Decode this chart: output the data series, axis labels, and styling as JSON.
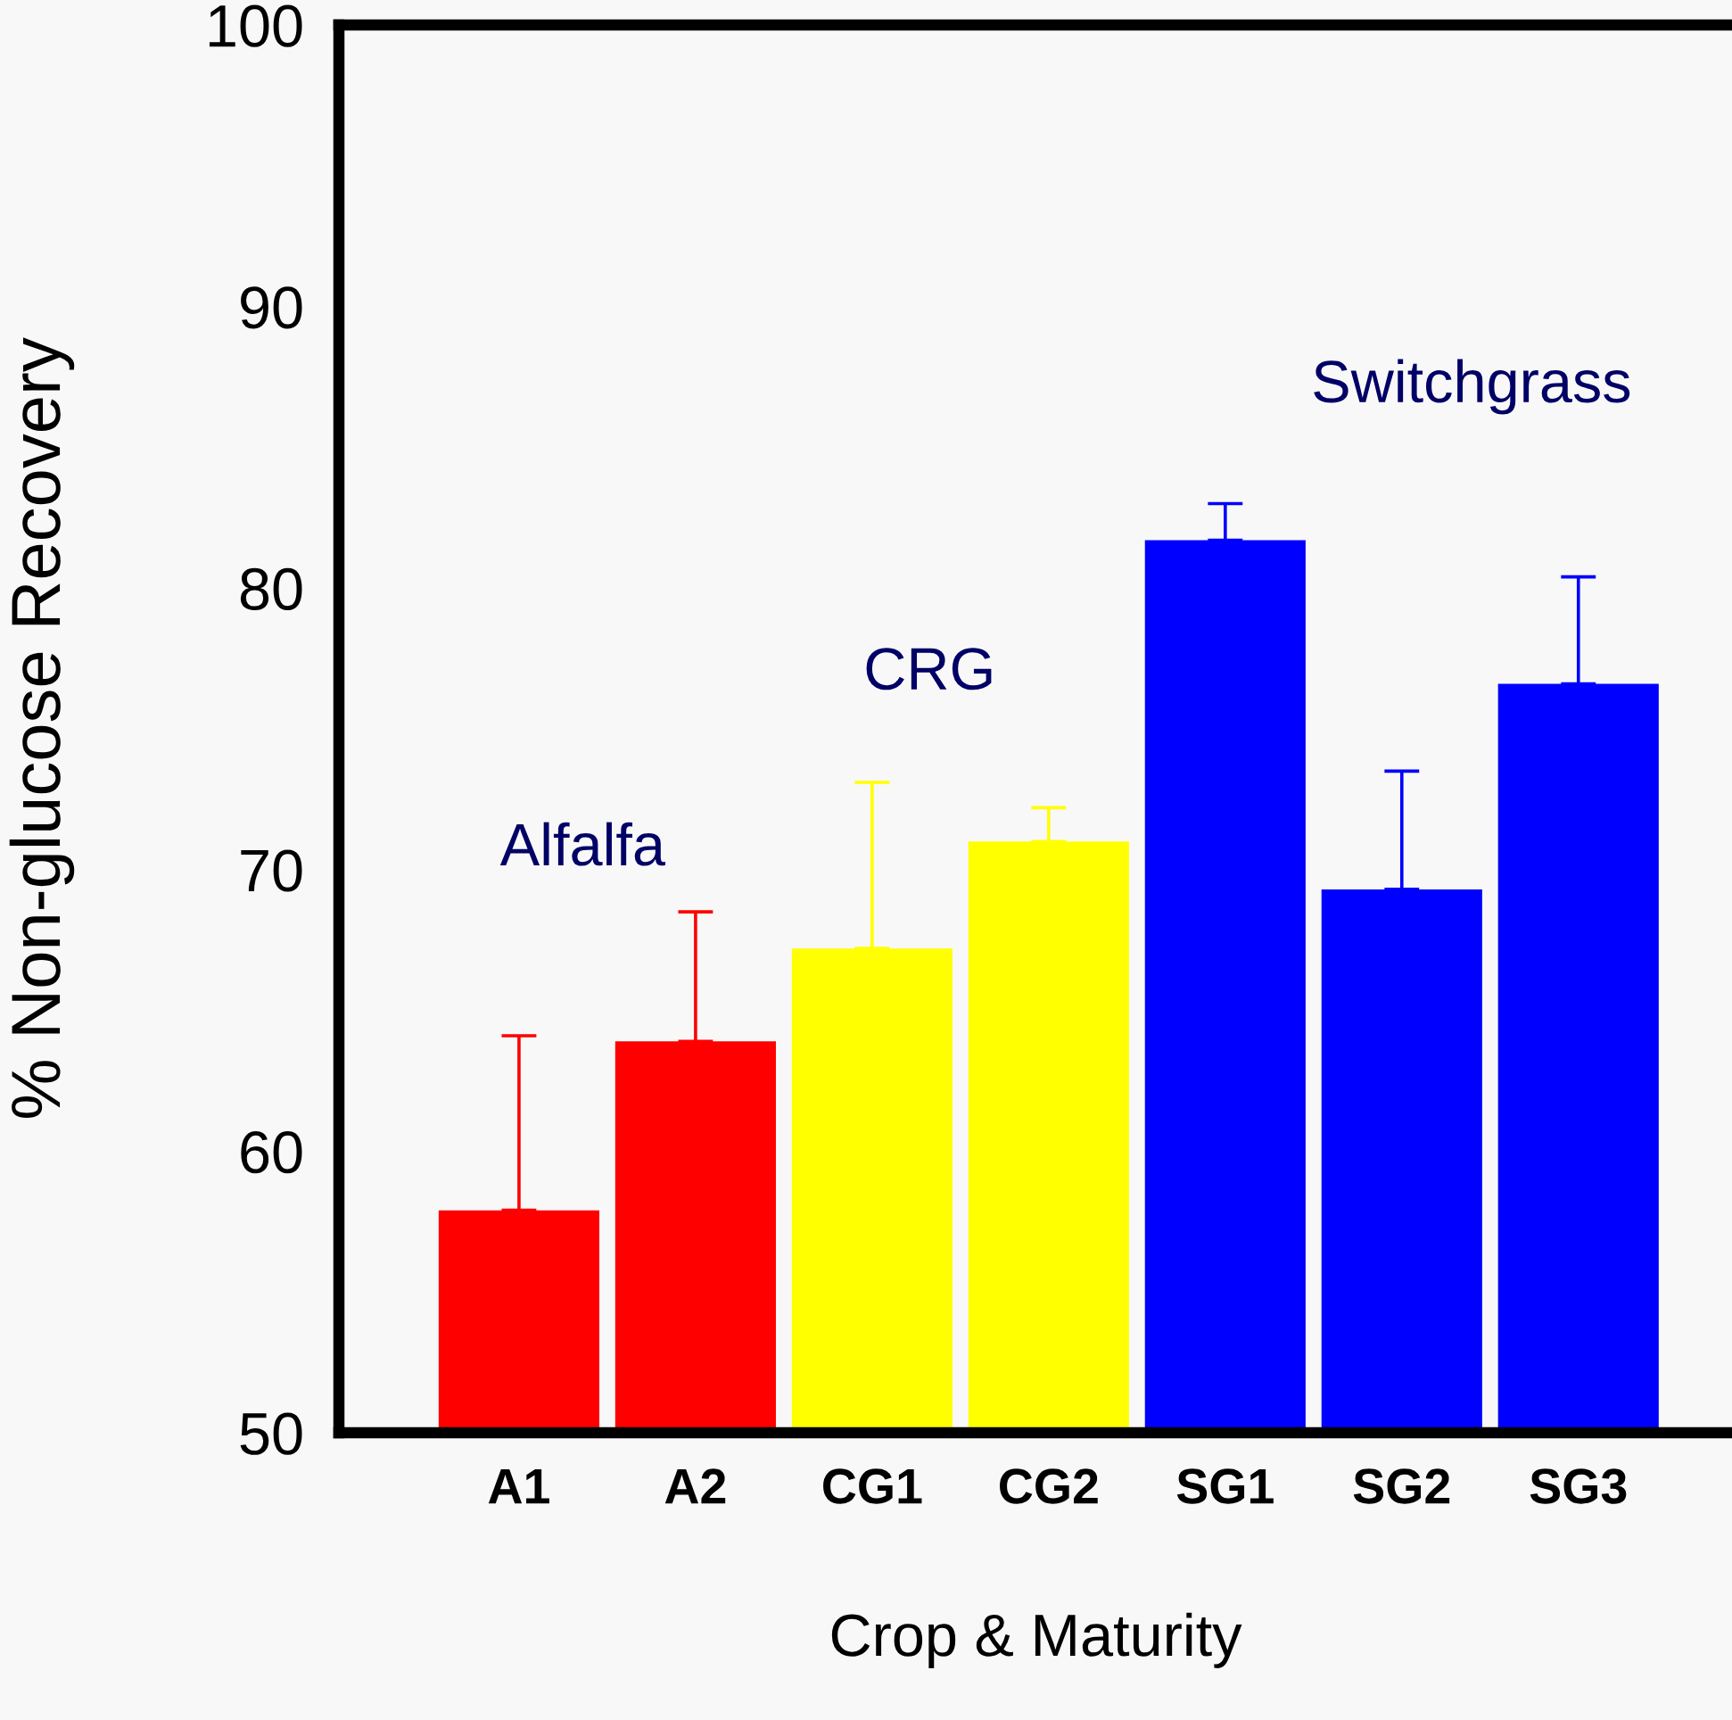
{
  "chart_data": {
    "type": "bar",
    "xlabel": "Crop & Maturity",
    "ylabel": "% Non-glucose Recovery",
    "categories": [
      "A1",
      "A2",
      "CG1",
      "CG2",
      "SG1",
      "SG2",
      "SG3"
    ],
    "values": [
      57.9,
      63.9,
      67.2,
      71.0,
      81.7,
      69.3,
      76.6
    ],
    "colors": [
      "#ff0000",
      "#ff0000",
      "#ffff00",
      "#ffff00",
      "#0000ff",
      "#0000ff",
      "#0000ff"
    ],
    "errors": [
      [
        57.9,
        64.1
      ],
      [
        63.9,
        68.5
      ],
      [
        67.2,
        73.1
      ],
      [
        71.0,
        72.2
      ],
      [
        81.7,
        83.0
      ],
      [
        69.3,
        73.5
      ],
      [
        76.6,
        80.4
      ]
    ],
    "annotations": [
      "Alfalfa",
      "CRG",
      "Switchgrass"
    ],
    "ylim": [
      50,
      100
    ],
    "yticks": [
      50,
      60,
      70,
      80,
      90,
      100
    ],
    "grid": false
  }
}
